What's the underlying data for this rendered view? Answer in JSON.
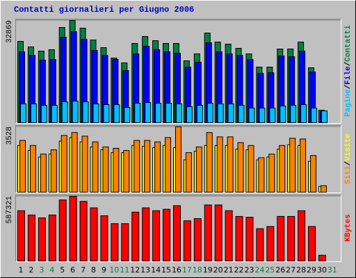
{
  "chart_data": [
    {
      "type": "bar",
      "title": "Contatti giornalieri per Giugno 2006",
      "ylim": [
        0,
        32869
      ],
      "yticks": [
        32869
      ],
      "legend_separator": "/",
      "series": [
        {
          "name": "Contatti",
          "color": "#008040",
          "values": [
            26161,
            24372,
            23031,
            23478,
            30633,
            32869,
            30409,
            26608,
            24149,
            20795,
            19230,
            25490,
            27726,
            26385,
            25490,
            25490,
            19900,
            22136,
            28844,
            25938,
            25267,
            23925,
            22136,
            17888,
            17888,
            23702,
            23702,
            25938,
            17664,
            4025,
            0
          ]
        },
        {
          "name": "File",
          "color": "#0000ff",
          "values": [
            22807,
            21689,
            20124,
            20348,
            27503,
            29292,
            26832,
            23254,
            21689,
            20348,
            16770,
            22136,
            24596,
            23478,
            22807,
            22360,
            17888,
            19453,
            25714,
            22807,
            22136,
            21689,
            20348,
            15876,
            16099,
            21466,
            21242,
            23031,
            16323,
            3578,
            0
          ]
        },
        {
          "name": "Pagine",
          "color": "#00c0ff",
          "values": [
            6037,
            6037,
            5590,
            5590,
            6708,
            6932,
            6708,
            6037,
            5814,
            5814,
            4919,
            6261,
            6484,
            6261,
            6261,
            6037,
            5143,
            5590,
            6261,
            6037,
            6037,
            5590,
            4696,
            4696,
            4696,
            5366,
            5590,
            5814,
            4696,
            3801,
            0
          ]
        }
      ]
    },
    {
      "type": "bar",
      "ylim": [
        0,
        3528
      ],
      "yticks": [
        3528
      ],
      "legend_separator": "/",
      "series": [
        {
          "name": "Visite",
          "color": "#ffff00",
          "values": [
            2522,
            2250,
            1901,
            2056,
            2755,
            2949,
            2716,
            2444,
            2289,
            2134,
            2134,
            2522,
            2483,
            2406,
            2522,
            2406,
            1746,
            2212,
            2522,
            2522,
            2522,
            2328,
            2289,
            1746,
            1901,
            2328,
            2561,
            2522,
            1668,
            310,
            0
          ]
        },
        {
          "name": "Siti",
          "color": "#ff8000",
          "values": [
            2794,
            2522,
            2056,
            2289,
            3065,
            3220,
            3026,
            2716,
            2444,
            2367,
            2250,
            2794,
            2794,
            2716,
            2949,
            3528,
            2134,
            2444,
            3220,
            2988,
            2988,
            2677,
            2522,
            1862,
            2056,
            2522,
            2910,
            2871,
            1979,
            349,
            0
          ]
        }
      ]
    },
    {
      "type": "bar",
      "ylim": [
        0,
        587321
      ],
      "yticks": [
        587321
      ],
      "categories": [
        "1",
        "2",
        "3",
        "4",
        "5",
        "6",
        "7",
        "8",
        "9",
        "10",
        "11",
        "12",
        "13",
        "14",
        "15",
        "16",
        "17",
        "18",
        "19",
        "20",
        "21",
        "22",
        "23",
        "24",
        "25",
        "26",
        "27",
        "28",
        "29",
        "30",
        "31"
      ],
      "category_colors": [
        "#000000",
        "#000000",
        "#008040",
        "#008040",
        "#000000",
        "#000000",
        "#000000",
        "#000000",
        "#000000",
        "#008040",
        "#008040",
        "#000000",
        "#000000",
        "#000000",
        "#000000",
        "#000000",
        "#008040",
        "#008040",
        "#000000",
        "#000000",
        "#000000",
        "#000000",
        "#000000",
        "#008040",
        "#008040",
        "#000000",
        "#000000",
        "#000000",
        "#000000",
        "#000000",
        "#008040"
      ],
      "series": [
        {
          "name": "KBytes",
          "color": "#ff0000",
          "values": [
            456820,
            417664,
            391560,
            417664,
            554710,
            587321,
            541658,
            482924,
            411138,
            339352,
            339352,
            443768,
            482924,
            456820,
            469872,
            502502,
            365456,
            385034,
            509028,
            509028,
            456820,
            404612,
            398086,
            293670,
            313248,
            404612,
            404612,
            456820,
            313248,
            52208,
            0
          ]
        }
      ]
    }
  ]
}
